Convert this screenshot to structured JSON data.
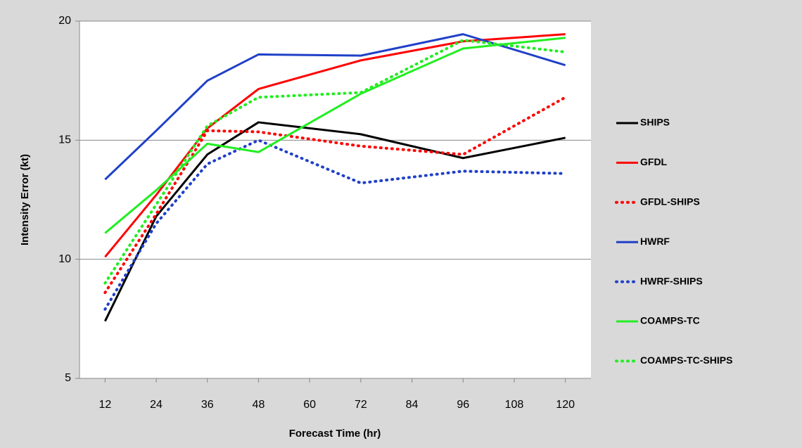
{
  "chart_data": {
    "type": "line",
    "x_label": "Forecast Time (hr)",
    "y_label": "Intensity Error (kt)",
    "x": [
      12,
      24,
      36,
      48,
      72,
      96,
      120
    ],
    "xlim": [
      6,
      126
    ],
    "xticks": [
      12,
      24,
      36,
      48,
      60,
      72,
      84,
      96,
      108,
      120
    ],
    "ylim": [
      5,
      20
    ],
    "yticks": [
      5,
      10,
      15,
      20
    ],
    "grid": true,
    "legend": "right",
    "series": [
      {
        "name": "SHIPS",
        "color": "#000000",
        "dash": false,
        "values": [
          7.4,
          11.8,
          14.4,
          15.75,
          15.25,
          14.25,
          15.1
        ]
      },
      {
        "name": "GFDL",
        "color": "#ff0000",
        "dash": false,
        "values": [
          10.1,
          12.7,
          15.5,
          17.15,
          18.35,
          19.15,
          19.45
        ]
      },
      {
        "name": "GFDL-SHIPS",
        "color": "#ff0000",
        "dash": true,
        "values": [
          8.6,
          11.9,
          15.4,
          15.35,
          14.75,
          14.4,
          16.8
        ]
      },
      {
        "name": "HWRF",
        "color": "#2040c8",
        "dash": false,
        "values": [
          13.35,
          15.4,
          17.5,
          18.6,
          18.55,
          19.45,
          18.15
        ]
      },
      {
        "name": "HWRF-SHIPS",
        "color": "#2040c8",
        "dash": true,
        "values": [
          7.9,
          11.5,
          14.0,
          15.0,
          13.2,
          13.7,
          13.6
        ]
      },
      {
        "name": "COAMPS-TC",
        "color": "#22ee22",
        "dash": false,
        "values": [
          11.1,
          12.9,
          14.85,
          14.5,
          16.95,
          18.85,
          19.3
        ]
      },
      {
        "name": "COAMPS-TC-SHIPS",
        "color": "#22ee22",
        "dash": true,
        "values": [
          9.0,
          12.3,
          15.6,
          16.8,
          17.0,
          19.2,
          18.7
        ]
      }
    ]
  }
}
